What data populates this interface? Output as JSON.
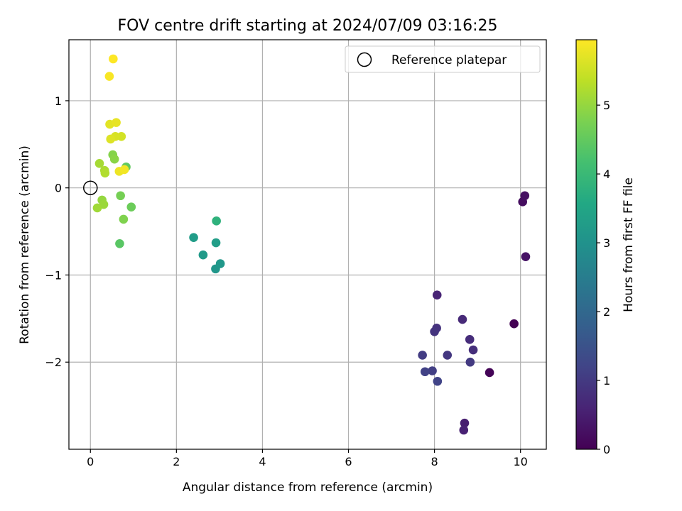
{
  "chart_data": {
    "type": "scatter",
    "title": "FOV centre drift starting at 2024/07/09 03:16:25",
    "xlabel": "Angular distance from reference (arcmin)",
    "ylabel": "Rotation from reference (arcmin)",
    "xlim": [
      -0.5,
      10.6
    ],
    "ylim": [
      -3.0,
      1.7
    ],
    "xticks": [
      0,
      2,
      4,
      6,
      8,
      10
    ],
    "yticks": [
      -2,
      -1,
      0,
      1
    ],
    "grid": true,
    "legend": {
      "label": "Reference platepar",
      "placement": "upper right"
    },
    "reference_point": {
      "x": 0,
      "y": 0
    },
    "colorbar": {
      "label": "Hours from first FF file",
      "range": [
        0,
        5.95
      ],
      "ticks": [
        0,
        1,
        2,
        3,
        4,
        5
      ],
      "colormap": "viridis"
    },
    "points": [
      {
        "x": 9.85,
        "y": -1.56,
        "c": 0.0
      },
      {
        "x": 9.28,
        "y": -2.12,
        "c": 0.05
      },
      {
        "x": 10.05,
        "y": -0.16,
        "c": 0.2
      },
      {
        "x": 10.1,
        "y": -0.09,
        "c": 0.25
      },
      {
        "x": 10.12,
        "y": -0.79,
        "c": 0.3
      },
      {
        "x": 8.7,
        "y": -2.7,
        "c": 0.5
      },
      {
        "x": 8.68,
        "y": -2.78,
        "c": 0.55
      },
      {
        "x": 8.06,
        "y": -1.23,
        "c": 0.6
      },
      {
        "x": 8.65,
        "y": -1.51,
        "c": 0.7
      },
      {
        "x": 8.82,
        "y": -1.74,
        "c": 0.75
      },
      {
        "x": 8.9,
        "y": -1.86,
        "c": 0.8
      },
      {
        "x": 8.05,
        "y": -1.61,
        "c": 0.85
      },
      {
        "x": 8.0,
        "y": -1.65,
        "c": 0.9
      },
      {
        "x": 8.3,
        "y": -1.92,
        "c": 0.95
      },
      {
        "x": 8.83,
        "y": -2.0,
        "c": 1.0
      },
      {
        "x": 7.72,
        "y": -1.92,
        "c": 1.05
      },
      {
        "x": 7.95,
        "y": -2.1,
        "c": 1.1
      },
      {
        "x": 7.78,
        "y": -2.11,
        "c": 1.15
      },
      {
        "x": 8.07,
        "y": -2.22,
        "c": 1.2
      },
      {
        "x": 2.91,
        "y": -0.93,
        "c": 3.1
      },
      {
        "x": 3.02,
        "y": -0.87,
        "c": 3.15
      },
      {
        "x": 2.62,
        "y": -0.77,
        "c": 3.2
      },
      {
        "x": 2.4,
        "y": -0.57,
        "c": 3.25
      },
      {
        "x": 2.92,
        "y": -0.63,
        "c": 3.3
      },
      {
        "x": 2.93,
        "y": -0.38,
        "c": 3.8
      },
      {
        "x": 0.68,
        "y": -0.64,
        "c": 4.4
      },
      {
        "x": 0.83,
        "y": 0.24,
        "c": 4.5
      },
      {
        "x": 0.95,
        "y": -0.22,
        "c": 4.6
      },
      {
        "x": 0.7,
        "y": -0.09,
        "c": 4.7
      },
      {
        "x": 0.77,
        "y": -0.36,
        "c": 4.8
      },
      {
        "x": 0.52,
        "y": 0.38,
        "c": 4.85
      },
      {
        "x": 0.56,
        "y": 0.33,
        "c": 4.9
      },
      {
        "x": 0.27,
        "y": -0.14,
        "c": 5.0
      },
      {
        "x": 0.31,
        "y": -0.19,
        "c": 5.05
      },
      {
        "x": 0.16,
        "y": -0.23,
        "c": 5.1
      },
      {
        "x": 0.21,
        "y": 0.28,
        "c": 5.15
      },
      {
        "x": 0.33,
        "y": 0.2,
        "c": 5.2
      },
      {
        "x": 0.34,
        "y": 0.17,
        "c": 5.25
      },
      {
        "x": 0.72,
        "y": 0.59,
        "c": 5.55
      },
      {
        "x": 0.58,
        "y": 0.59,
        "c": 5.6
      },
      {
        "x": 0.47,
        "y": 0.56,
        "c": 5.65
      },
      {
        "x": 0.45,
        "y": 0.73,
        "c": 5.7
      },
      {
        "x": 0.6,
        "y": 0.75,
        "c": 5.75
      },
      {
        "x": 0.67,
        "y": 0.19,
        "c": 5.8
      },
      {
        "x": 0.79,
        "y": 0.21,
        "c": 5.85
      },
      {
        "x": 0.44,
        "y": 1.28,
        "c": 5.9
      },
      {
        "x": 0.53,
        "y": 1.48,
        "c": 5.95
      }
    ]
  }
}
